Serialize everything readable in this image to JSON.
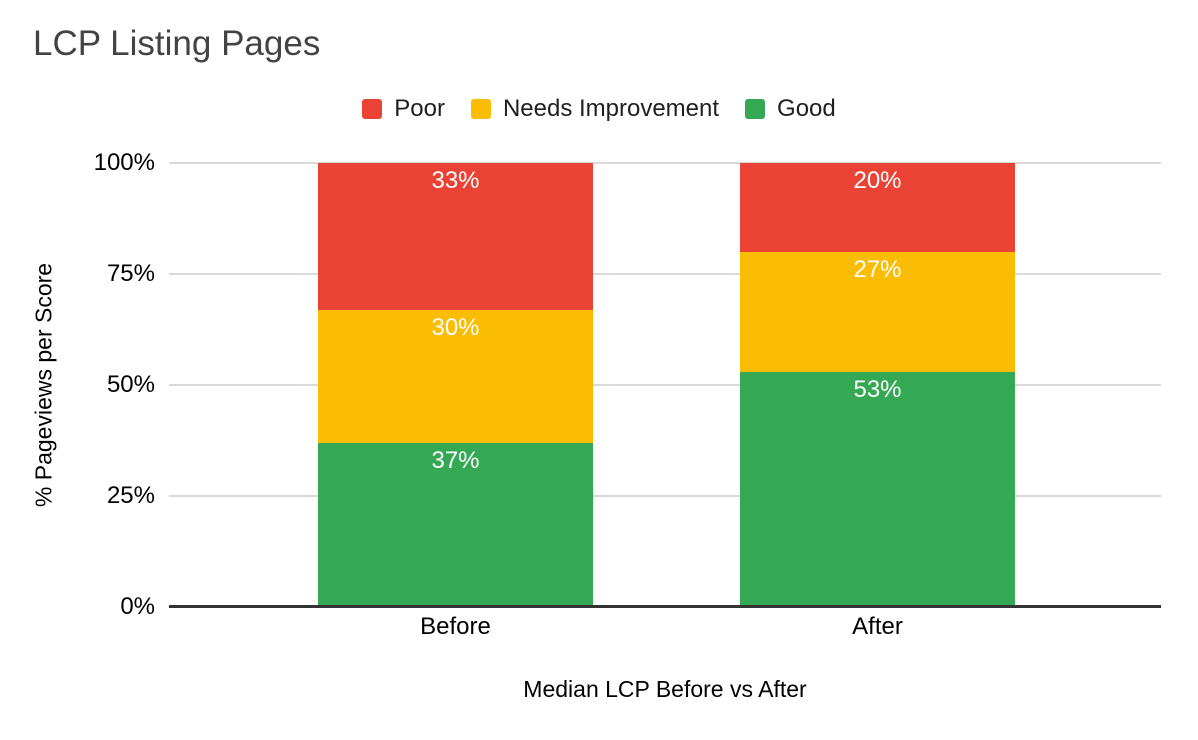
{
  "chart": {
    "title": "LCP Listing Pages"
  },
  "chart_data": {
    "type": "bar",
    "subtype": "stacked-100-percent",
    "title": "LCP Listing Pages",
    "categories": [
      "Before",
      "After"
    ],
    "series": [
      {
        "name": "Poor",
        "color": "#EA4335",
        "values": [
          33,
          20
        ]
      },
      {
        "name": "Needs Improvement",
        "color": "#FBBC04",
        "values": [
          30,
          27
        ]
      },
      {
        "name": "Good",
        "color": "#34A853",
        "values": [
          37,
          53
        ]
      }
    ],
    "stack_order": "top-to-bottom",
    "data_label_suffix": "%",
    "data_labels": [
      [
        "33%",
        "20%"
      ],
      [
        "30%",
        "27%"
      ],
      [
        "37%",
        "53%"
      ]
    ],
    "xlabel": "Median LCP Before vs After",
    "ylabel": "% Pageviews per Score",
    "yticks": [
      0,
      25,
      50,
      75,
      100
    ],
    "ytick_labels": [
      "0%",
      "25%",
      "50%",
      "75%",
      "100%"
    ],
    "ylim": [
      0,
      100
    ],
    "grid": true,
    "legend_position": "top-center",
    "colors": {
      "grid": "#d9d9d9",
      "axis": "#333333",
      "title_text": "#434343",
      "axis_text": "#000000",
      "legend_text": "#1f1f1f",
      "bar_value_text": "#ffffff",
      "background": "#ffffff"
    }
  }
}
